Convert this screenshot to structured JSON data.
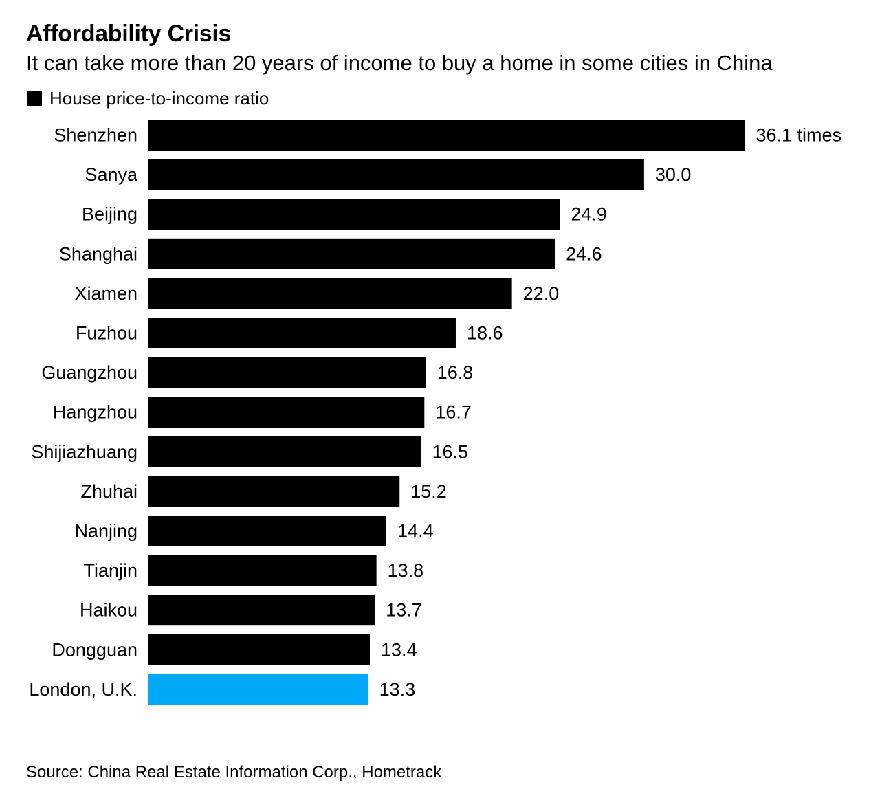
{
  "chart_data": {
    "type": "bar",
    "orientation": "horizontal",
    "title": "Affordability Crisis",
    "subtitle": "It can take more than 20 years of income to buy a home in some cities in China",
    "legend": [
      {
        "label": "House price-to-income ratio",
        "color": "#000000"
      }
    ],
    "legend_position": "top-left",
    "categories": [
      "Shenzhen",
      "Sanya",
      "Beijing",
      "Shanghai",
      "Xiamen",
      "Fuzhou",
      "Guangzhou",
      "Hangzhou",
      "Shijiazhuang",
      "Zhuhai",
      "Nanjing",
      "Tianjin",
      "Haikou",
      "Dongguan",
      "London, U.K."
    ],
    "values": [
      36.1,
      30.0,
      24.9,
      24.6,
      22.0,
      18.6,
      16.8,
      16.7,
      16.5,
      15.2,
      14.4,
      13.8,
      13.7,
      13.4,
      13.3
    ],
    "data_labels": [
      "36.1 times",
      "30.0",
      "24.9",
      "24.6",
      "22.0",
      "18.6",
      "16.8",
      "16.7",
      "16.5",
      "15.2",
      "14.4",
      "13.8",
      "13.7",
      "13.4",
      "13.3"
    ],
    "bar_colors": [
      "#000000",
      "#000000",
      "#000000",
      "#000000",
      "#000000",
      "#000000",
      "#000000",
      "#000000",
      "#000000",
      "#000000",
      "#000000",
      "#000000",
      "#000000",
      "#000000",
      "#00a8f8"
    ],
    "highlight_category": "London, U.K.",
    "xlabel": "",
    "ylabel": "",
    "xlim": [
      0,
      36.1
    ],
    "grid": false,
    "source": "Source: China Real Estate Information Corp., Hometrack"
  }
}
